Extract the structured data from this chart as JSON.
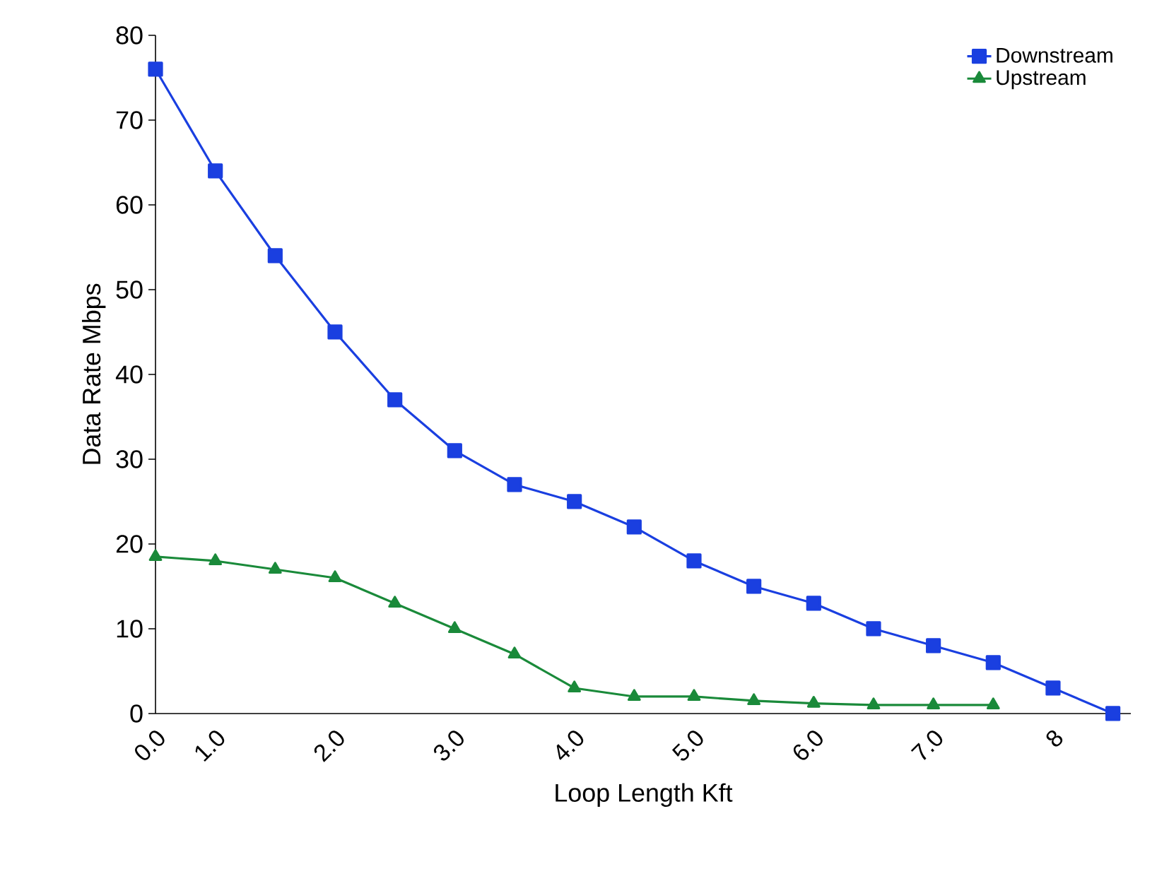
{
  "chart_data": {
    "type": "line",
    "xlabel": "Loop Length Kft",
    "ylabel": "Data Rate Mbps",
    "categories": [
      "0.0",
      "1.0",
      null,
      "2.0",
      null,
      "3.0",
      null,
      "4.0",
      null,
      "5.0",
      null,
      "6.0",
      null,
      "7.0",
      null,
      "8",
      null
    ],
    "series": [
      {
        "name": "Downstream",
        "color": "#1a3fe0",
        "marker": "square",
        "values": [
          76,
          64,
          54,
          45,
          37,
          31,
          27,
          25,
          22,
          18,
          15,
          13,
          10,
          8,
          6,
          3,
          0
        ]
      },
      {
        "name": "Upstream",
        "color": "#1a8a3a",
        "marker": "triangle",
        "values": [
          18.5,
          18,
          17,
          16,
          13,
          10,
          7,
          3,
          2,
          2,
          1.5,
          1.2,
          1,
          1,
          1,
          null,
          null
        ]
      }
    ],
    "ylim": [
      0,
      80
    ],
    "yticks": [
      0,
      10,
      20,
      30,
      40,
      50,
      60,
      70,
      80
    ],
    "legend": "top right",
    "grid": false
  }
}
